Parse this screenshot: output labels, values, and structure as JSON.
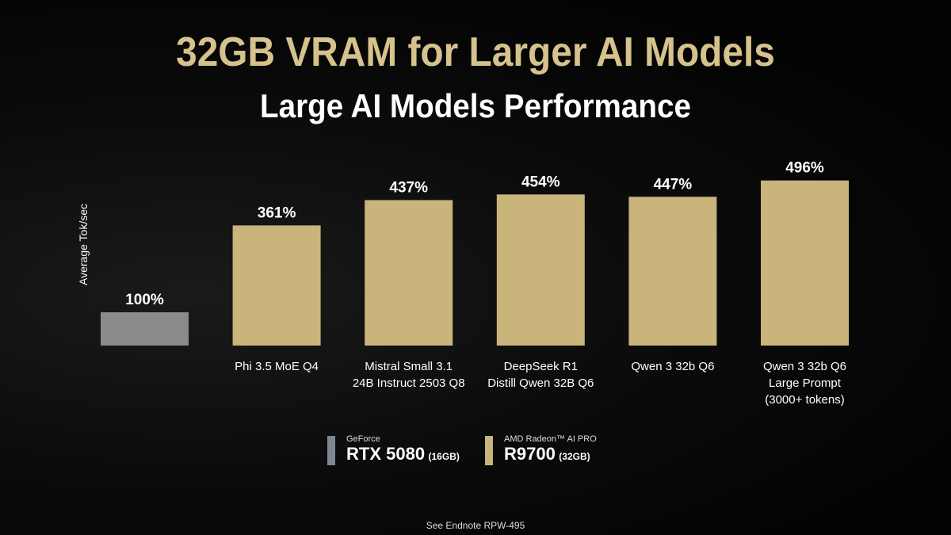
{
  "header": {
    "title": "32GB VRAM for Larger AI Models",
    "subtitle": "Large AI Models Performance"
  },
  "chart_data": {
    "type": "bar",
    "title": "Large AI Models Performance",
    "ylabel": "Average Tok/sec",
    "categories": [
      "",
      "Phi 3.5 MoE Q4",
      "Mistral Small 3.1\n24B Instruct 2503 Q8",
      "DeepSeek R1\nDistill Qwen 32B Q6",
      "Qwen 3 32b Q6",
      "Qwen 3 32b Q6\nLarge Prompt\n(3000+ tokens)"
    ],
    "values": [
      100,
      361,
      437,
      454,
      447,
      496
    ],
    "data_labels": [
      "100%",
      "361%",
      "437%",
      "454%",
      "447%",
      "496%"
    ],
    "bar_series": [
      "GeForce RTX 5080 (16GB)",
      "AMD Radeon AI PRO R9700 (32GB)",
      "AMD Radeon AI PRO R9700 (32GB)",
      "AMD Radeon AI PRO R9700 (32GB)",
      "AMD Radeon AI PRO R9700 (32GB)",
      "AMD Radeon AI PRO R9700 (32GB)"
    ],
    "ylim": [
      0,
      520
    ],
    "grid": false,
    "legend_placement": "bottom-center",
    "colors": {
      "baseline": "#8a8a8a",
      "r9700": "#c9b47c"
    }
  },
  "legend": [
    {
      "brand": "GeForce",
      "model": "RTX 5080",
      "memory": "(16GB)",
      "color": "#7d8792"
    },
    {
      "brand": "AMD Radeon™ AI PRO",
      "model": "R9700",
      "memory": "(32GB)",
      "color": "#c9b47c"
    }
  ],
  "footnote": "See Endnote  RPW-495"
}
